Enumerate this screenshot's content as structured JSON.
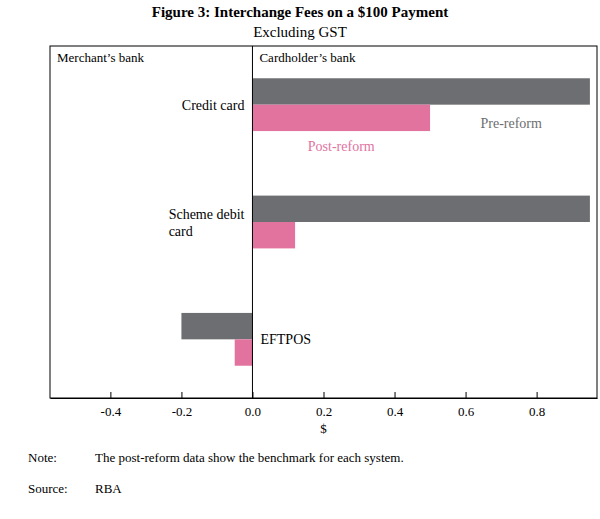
{
  "chart_data": {
    "type": "bar",
    "orientation": "horizontal",
    "title": "Figure 3: Interchange Fees on a $100 Payment",
    "subtitle": "Excluding GST",
    "categories": [
      "Credit card",
      "Scheme debit card",
      "EFTPOS"
    ],
    "series": [
      {
        "name": "Pre-reform",
        "color": "#6d6e71",
        "values": [
          0.95,
          0.95,
          -0.2
        ]
      },
      {
        "name": "Post-reform",
        "color": "#e2739f",
        "values": [
          0.5,
          0.12,
          -0.05
        ]
      }
    ],
    "x_label": "$",
    "xlim": [
      -0.57,
      0.97
    ],
    "xticks": [
      -0.4,
      -0.2,
      {
        "value": 0,
        "label": "0.0"
      },
      0.2,
      0.4,
      0.6,
      0.8
    ],
    "annotations": [
      "Merchant’s bank",
      "Cardholder’s bank"
    ],
    "notes": [
      {
        "label": "Note:",
        "text": "The post-reform data show the benchmark for each system."
      },
      {
        "label": "Source:",
        "text": "RBA"
      }
    ]
  }
}
